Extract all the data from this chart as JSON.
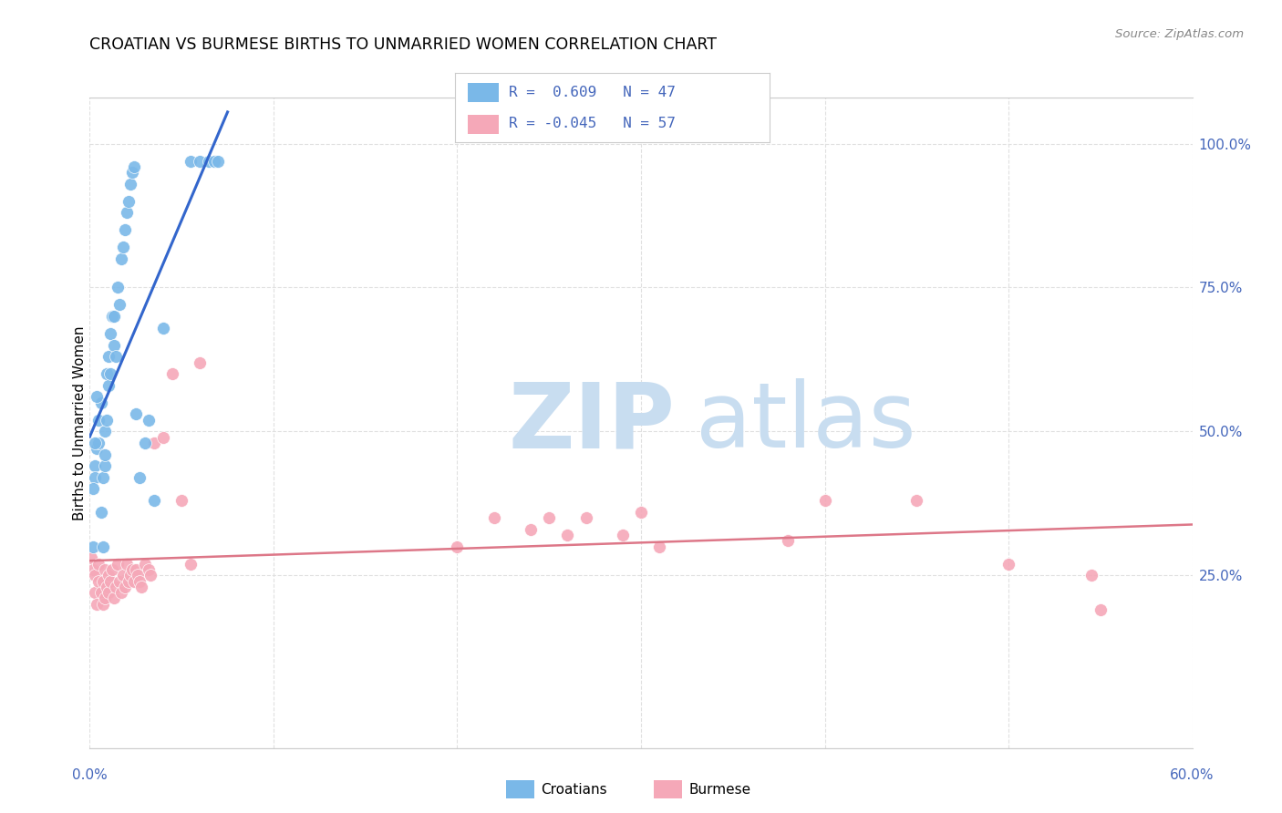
{
  "title": "CROATIAN VS BURMESE BIRTHS TO UNMARRIED WOMEN CORRELATION CHART",
  "source": "Source: ZipAtlas.com",
  "ylabel": "Births to Unmarried Women",
  "xlim": [
    0.0,
    0.6
  ],
  "ylim": [
    -0.05,
    1.08
  ],
  "ytick_values": [
    0.25,
    0.5,
    0.75,
    1.0
  ],
  "xtick_values": [
    0.0,
    0.1,
    0.2,
    0.3,
    0.4,
    0.5,
    0.6
  ],
  "croatian_R": 0.609,
  "croatian_N": 47,
  "burmese_R": -0.045,
  "burmese_N": 57,
  "croatian_color": "#7ab8e8",
  "burmese_color": "#f5a8b8",
  "trendline_croatian_color": "#3366cc",
  "trendline_burmese_color": "#dd7788",
  "background_color": "#ffffff",
  "grid_color": "#e0e0e0",
  "watermark_zip_color": "#c8ddf0",
  "watermark_atlas_color": "#c8ddf0",
  "legend_border_color": "#cccccc",
  "right_axis_color": "#4466bb",
  "croatian_x": [
    0.002,
    0.003,
    0.003,
    0.004,
    0.005,
    0.005,
    0.006,
    0.007,
    0.007,
    0.008,
    0.008,
    0.009,
    0.009,
    0.01,
    0.01,
    0.011,
    0.011,
    0.012,
    0.013,
    0.013,
    0.014,
    0.015,
    0.016,
    0.017,
    0.018,
    0.019,
    0.02,
    0.021,
    0.022,
    0.023,
    0.024,
    0.025,
    0.027,
    0.03,
    0.032,
    0.035,
    0.04,
    0.055,
    0.06,
    0.065,
    0.068,
    0.07,
    0.002,
    0.003,
    0.004,
    0.006,
    0.008
  ],
  "croatian_y": [
    0.3,
    0.44,
    0.42,
    0.47,
    0.52,
    0.48,
    0.55,
    0.3,
    0.42,
    0.44,
    0.5,
    0.52,
    0.6,
    0.58,
    0.63,
    0.6,
    0.67,
    0.7,
    0.65,
    0.7,
    0.63,
    0.75,
    0.72,
    0.8,
    0.82,
    0.85,
    0.88,
    0.9,
    0.93,
    0.95,
    0.96,
    0.53,
    0.42,
    0.48,
    0.52,
    0.38,
    0.68,
    0.97,
    0.97,
    0.97,
    0.97,
    0.97,
    0.4,
    0.48,
    0.56,
    0.36,
    0.46
  ],
  "burmese_x": [
    0.001,
    0.002,
    0.003,
    0.003,
    0.004,
    0.005,
    0.005,
    0.006,
    0.007,
    0.007,
    0.008,
    0.008,
    0.009,
    0.01,
    0.01,
    0.011,
    0.012,
    0.013,
    0.014,
    0.015,
    0.016,
    0.017,
    0.018,
    0.019,
    0.02,
    0.021,
    0.022,
    0.023,
    0.024,
    0.025,
    0.026,
    0.027,
    0.028,
    0.03,
    0.032,
    0.033,
    0.035,
    0.04,
    0.045,
    0.05,
    0.055,
    0.06,
    0.2,
    0.22,
    0.24,
    0.25,
    0.26,
    0.27,
    0.29,
    0.3,
    0.31,
    0.38,
    0.4,
    0.45,
    0.5,
    0.545,
    0.55
  ],
  "burmese_y": [
    0.28,
    0.26,
    0.25,
    0.22,
    0.2,
    0.24,
    0.27,
    0.22,
    0.2,
    0.24,
    0.21,
    0.26,
    0.23,
    0.25,
    0.22,
    0.24,
    0.26,
    0.21,
    0.23,
    0.27,
    0.24,
    0.22,
    0.25,
    0.23,
    0.27,
    0.24,
    0.25,
    0.26,
    0.24,
    0.26,
    0.25,
    0.24,
    0.23,
    0.27,
    0.26,
    0.25,
    0.48,
    0.49,
    0.6,
    0.38,
    0.27,
    0.62,
    0.3,
    0.35,
    0.33,
    0.35,
    0.32,
    0.35,
    0.32,
    0.36,
    0.3,
    0.31,
    0.38,
    0.38,
    0.27,
    0.25,
    0.19
  ]
}
